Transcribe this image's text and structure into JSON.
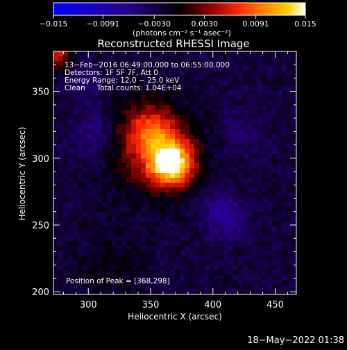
{
  "chart_data": {
    "type": "heatmap",
    "title": "Reconstructed RHESSI Image",
    "xlabel": "Heliocentric X (arcsec)",
    "ylabel": "Heliocentric Y (arcsec)",
    "xlim": [
      272,
      467
    ],
    "ylim": [
      198,
      380
    ],
    "x_ticks": [
      300,
      350,
      400,
      450
    ],
    "y_ticks": [
      200,
      250,
      300,
      350
    ],
    "colorbar": {
      "range": [
        -0.015,
        0.015
      ],
      "tick_values": [
        -0.015,
        -0.0091,
        -0.003,
        0.003,
        0.0091,
        0.015
      ],
      "tick_labels": [
        "−0.015",
        "−0.0091",
        "−0.0030",
        "0.0030",
        "0.0091",
        "0.015"
      ],
      "units_label": "(photons cm⁻² s⁻¹ asec⁻²)",
      "colors": [
        "#0000ff",
        "#2a0088",
        "#000000",
        "#8a0000",
        "#ff2a00",
        "#ff8800",
        "#ffd000",
        "#ffffff"
      ]
    },
    "annotations": [
      "13−Feb−2016 06:49:00.000 to 06:55:00.000",
      "Detectors: 1F 5F 7F, Att 0",
      "Energy Range: 12.0 − 25.0 keV",
      "Clean     Total counts: 1.04E+04"
    ],
    "peak_label": "Position of Peak = [368,298]",
    "peak": [
      368,
      298
    ],
    "sources": [
      {
        "x": 367,
        "y": 296,
        "sigma": 12,
        "amp": 0.015
      },
      {
        "x": 352,
        "y": 310,
        "sigma": 22,
        "amp": 0.0085
      },
      {
        "x": 348,
        "y": 322,
        "sigma": 12,
        "amp": 0.0045
      },
      {
        "x": 276,
        "y": 377,
        "sigma": 7,
        "amp": 0.008
      },
      {
        "x": 318,
        "y": 218,
        "sigma": 18,
        "amp": 0.002
      },
      {
        "x": 305,
        "y": 318,
        "sigma": 14,
        "amp": -0.003
      },
      {
        "x": 412,
        "y": 253,
        "sigma": 11,
        "amp": -0.0032
      },
      {
        "x": 402,
        "y": 262,
        "sigma": 10,
        "amp": -0.0022
      },
      {
        "x": 298,
        "y": 355,
        "sigma": 10,
        "amp": -0.0018
      },
      {
        "x": 425,
        "y": 320,
        "sigma": 14,
        "amp": -0.0015
      }
    ],
    "background": -0.0025
  },
  "footer": {
    "timestamp": "18−May−2022 01:38"
  }
}
